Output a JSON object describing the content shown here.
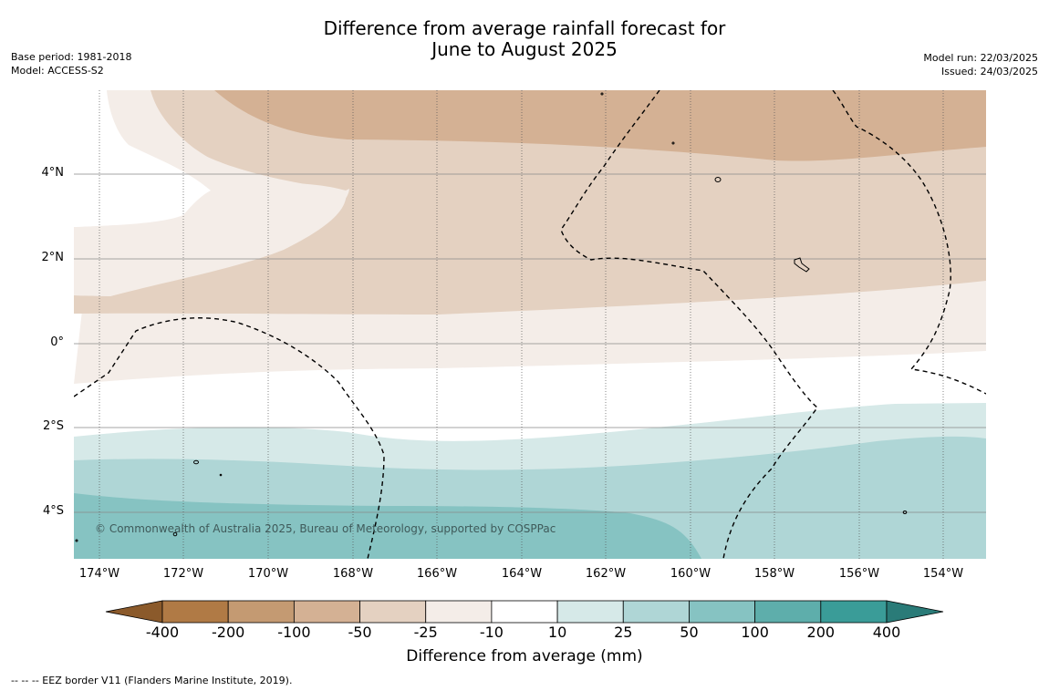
{
  "title_line1": "Difference from average rainfall forecast for",
  "title_line2": "June to August 2025",
  "base_period": "Base period: 1981-2018",
  "model": "Model: ACCESS-S2",
  "model_run": "Model run: 22/03/2025",
  "issued": "Issued: 24/03/2025",
  "lat_labels": [
    "4°N",
    "2°N",
    "0°",
    "2°S",
    "4°S"
  ],
  "lon_labels": [
    "174°W",
    "172°W",
    "170°W",
    "168°W",
    "166°W",
    "164°W",
    "162°W",
    "160°W",
    "158°W",
    "156°W",
    "154°W"
  ],
  "copyright": "© Commonwealth of Australia 2025, Bureau of Meteorology, supported by COSPPac",
  "colorbar": {
    "ticks": [
      "-400",
      "-200",
      "-100",
      "-50",
      "-25",
      "-10",
      "10",
      "25",
      "50",
      "100",
      "200",
      "400"
    ],
    "colors": [
      "#8b5a2b",
      "#b07a45",
      "#c49a72",
      "#d4b194",
      "#e4d1c1",
      "#f4ede8",
      "#ffffff",
      "#d6e9e8",
      "#afd6d6",
      "#86c3c2",
      "#5eaeab",
      "#3a9c98",
      "#2a7b78"
    ],
    "label": "Difference from average (mm)"
  },
  "footnote": "--  --  -- EEZ border V11 (Flanders Marine Institute, 2019)."
}
